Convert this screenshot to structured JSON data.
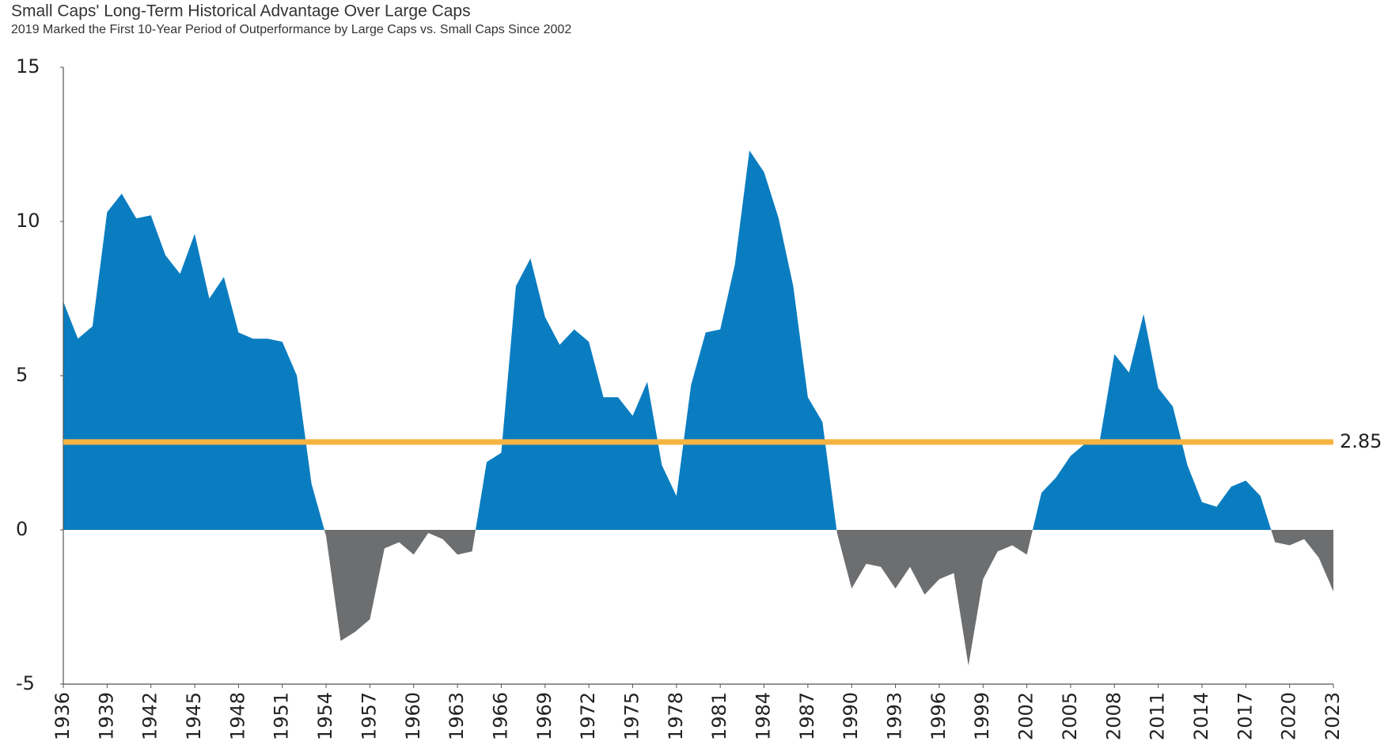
{
  "chart_data": {
    "type": "area",
    "title": "Small Caps' Long-Term Historical Advantage Over Large Caps",
    "subtitle": "2019 Marked the First 10-Year Period of Outperformance by Large Caps vs. Small Caps Since 2002",
    "x": [
      1936,
      1937,
      1938,
      1939,
      1940,
      1941,
      1942,
      1943,
      1944,
      1945,
      1946,
      1947,
      1948,
      1949,
      1950,
      1951,
      1952,
      1953,
      1954,
      1955,
      1956,
      1957,
      1958,
      1959,
      1960,
      1961,
      1962,
      1963,
      1964,
      1965,
      1966,
      1967,
      1968,
      1969,
      1970,
      1971,
      1972,
      1973,
      1974,
      1975,
      1976,
      1977,
      1978,
      1979,
      1980,
      1981,
      1982,
      1983,
      1984,
      1985,
      1986,
      1987,
      1988,
      1989,
      1990,
      1991,
      1992,
      1993,
      1994,
      1995,
      1996,
      1997,
      1998,
      1999,
      2000,
      2001,
      2002,
      2003,
      2004,
      2005,
      2006,
      2007,
      2008,
      2009,
      2010,
      2011,
      2012,
      2013,
      2014,
      2015,
      2016,
      2017,
      2018,
      2019,
      2020,
      2021,
      2022,
      2023
    ],
    "series": [
      {
        "positive_color": "#0a7dc1",
        "negative_color": "#6d6e70",
        "values": [
          7.4,
          6.2,
          6.6,
          10.3,
          10.9,
          10.1,
          10.2,
          8.9,
          8.3,
          9.6,
          7.5,
          8.2,
          6.4,
          6.2,
          6.2,
          6.1,
          5.0,
          1.5,
          -0.2,
          -3.6,
          -3.3,
          -2.9,
          -0.6,
          -0.4,
          -0.8,
          -0.1,
          -0.3,
          -0.8,
          -0.7,
          2.2,
          2.5,
          7.9,
          8.8,
          6.9,
          6.0,
          6.5,
          6.1,
          4.3,
          4.3,
          3.7,
          4.8,
          2.1,
          1.1,
          4.7,
          6.4,
          6.5,
          8.6,
          12.3,
          11.6,
          10.1,
          7.9,
          4.3,
          3.5,
          -0.1,
          -1.9,
          -1.1,
          -1.2,
          -1.9,
          -1.2,
          -2.1,
          -1.6,
          -1.4,
          -4.4,
          -1.6,
          -0.7,
          -0.5,
          -0.8,
          1.2,
          1.7,
          2.4,
          2.8,
          2.9,
          5.7,
          5.1,
          7.0,
          4.6,
          4.0,
          2.1,
          0.9,
          0.75,
          1.4,
          1.6,
          1.1,
          -0.4,
          -0.5,
          -0.3,
          -0.9,
          -2.0
        ]
      }
    ],
    "reference_line": {
      "value": 2.85,
      "color": "#f5b342"
    },
    "xlim": [
      1936,
      2023
    ],
    "xticks": [
      1936,
      1939,
      1942,
      1945,
      1948,
      1951,
      1954,
      1957,
      1960,
      1963,
      1966,
      1969,
      1972,
      1975,
      1978,
      1981,
      1984,
      1987,
      1990,
      1993,
      1996,
      1999,
      2002,
      2005,
      2008,
      2011,
      2014,
      2017,
      2020,
      2023
    ],
    "ylim": [
      -5,
      15
    ],
    "yticks": [
      -5,
      0,
      5,
      10,
      15
    ]
  }
}
